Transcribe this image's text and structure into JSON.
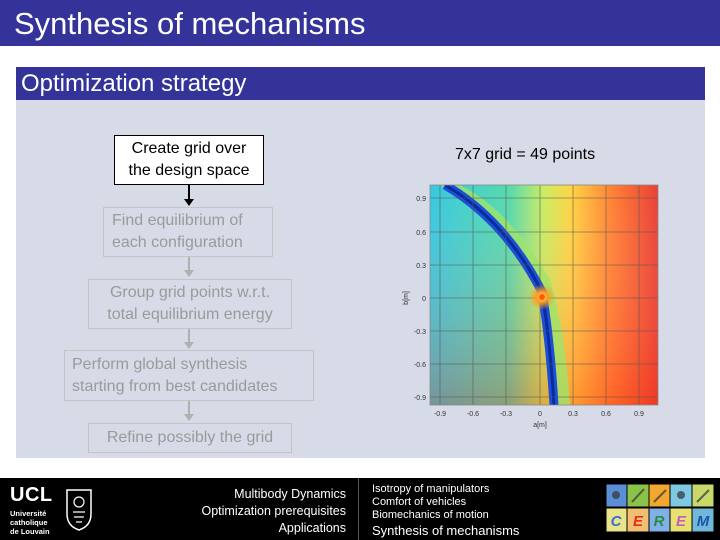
{
  "slide": {
    "title": "Synthesis of mechanisms",
    "section": "Optimization strategy"
  },
  "steps": [
    {
      "label_line1": "Create grid over",
      "label_line2": "the design space",
      "active": true
    },
    {
      "label_line1": "Find equilibrium of",
      "label_line2": "each configuration",
      "active": false
    },
    {
      "label_line1": "Group grid points w.r.t.",
      "label_line2": "total equilibrium energy",
      "active": false
    },
    {
      "label_line1": "Perform global synthesis",
      "label_line2": "starting from best candidates",
      "active": false
    },
    {
      "label_line1": "Refine possibly the grid",
      "label_line2": "",
      "active": false
    }
  ],
  "grid_note": "7x7 grid = 49 points",
  "plot": {
    "xlabel": "a[m]",
    "ylabel": "b[m]",
    "xticks": [
      "-0.9",
      "-0.6",
      "-0.3",
      "0",
      "0.3",
      "0.6",
      "0.9"
    ],
    "yticks": [
      "0.9",
      "0.6",
      "0.3",
      "0",
      "-0.3",
      "-0.6",
      "-0.9"
    ],
    "colors": {
      "low": "#1a4fd6",
      "mid": "#8fe08a",
      "high": "#e8342a",
      "marker": "#ff9a1f"
    }
  },
  "footer": {
    "logo_big": "UCL",
    "logo_line1": "Université",
    "logo_line2": "catholique",
    "logo_line3": "de Louvain",
    "left_items": [
      "Multibody Dynamics",
      "Optimization prerequisites",
      "Applications"
    ],
    "right_items": [
      "Isotropy of manipulators",
      "Comfort of vehicles",
      "Biomechanics of motion"
    ],
    "right_current": "Synthesis of mechanisms",
    "tile_letters": [
      "C",
      "E",
      "R",
      "E",
      "M"
    ]
  }
}
